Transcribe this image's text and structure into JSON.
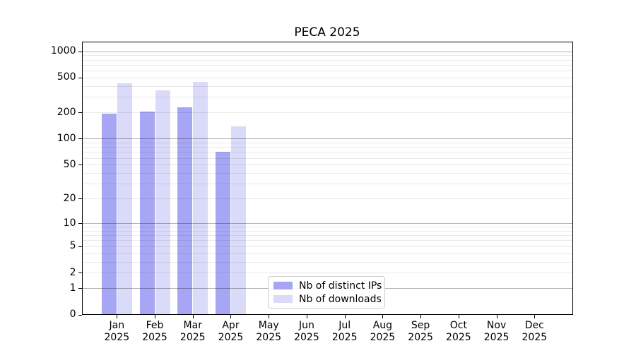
{
  "chart_data": {
    "type": "bar",
    "title": "PECA 2025",
    "categories": [
      "Jan",
      "Feb",
      "Mar",
      "Apr",
      "May",
      "Jun",
      "Jul",
      "Aug",
      "Sep",
      "Oct",
      "Nov",
      "Dec"
    ],
    "x_sublabel": "2025",
    "series": [
      {
        "name": "Nb of distinct IPs",
        "color": "#a6a6f4",
        "values": [
          193,
          203,
          227,
          70,
          null,
          null,
          null,
          null,
          null,
          null,
          null,
          null
        ]
      },
      {
        "name": "Nb of downloads",
        "color": "#dadaf9",
        "values": [
          433,
          357,
          443,
          138,
          null,
          null,
          null,
          null,
          null,
          null,
          null,
          null
        ]
      }
    ],
    "yticks": [
      0,
      1,
      2,
      5,
      10,
      20,
      50,
      100,
      200,
      500,
      1000
    ],
    "yscale": "log1p",
    "ylim": [
      0,
      1280
    ],
    "xlabel": "",
    "ylabel": "",
    "grid": true,
    "grid_major_values": [
      1,
      10,
      100,
      1000
    ],
    "grid_minor_color": "#e9e9e9",
    "grid_major_color": "#b3b3b3",
    "legend": {
      "position": "bottom-center",
      "entries": [
        "Nb of distinct IPs",
        "Nb of downloads"
      ]
    }
  }
}
